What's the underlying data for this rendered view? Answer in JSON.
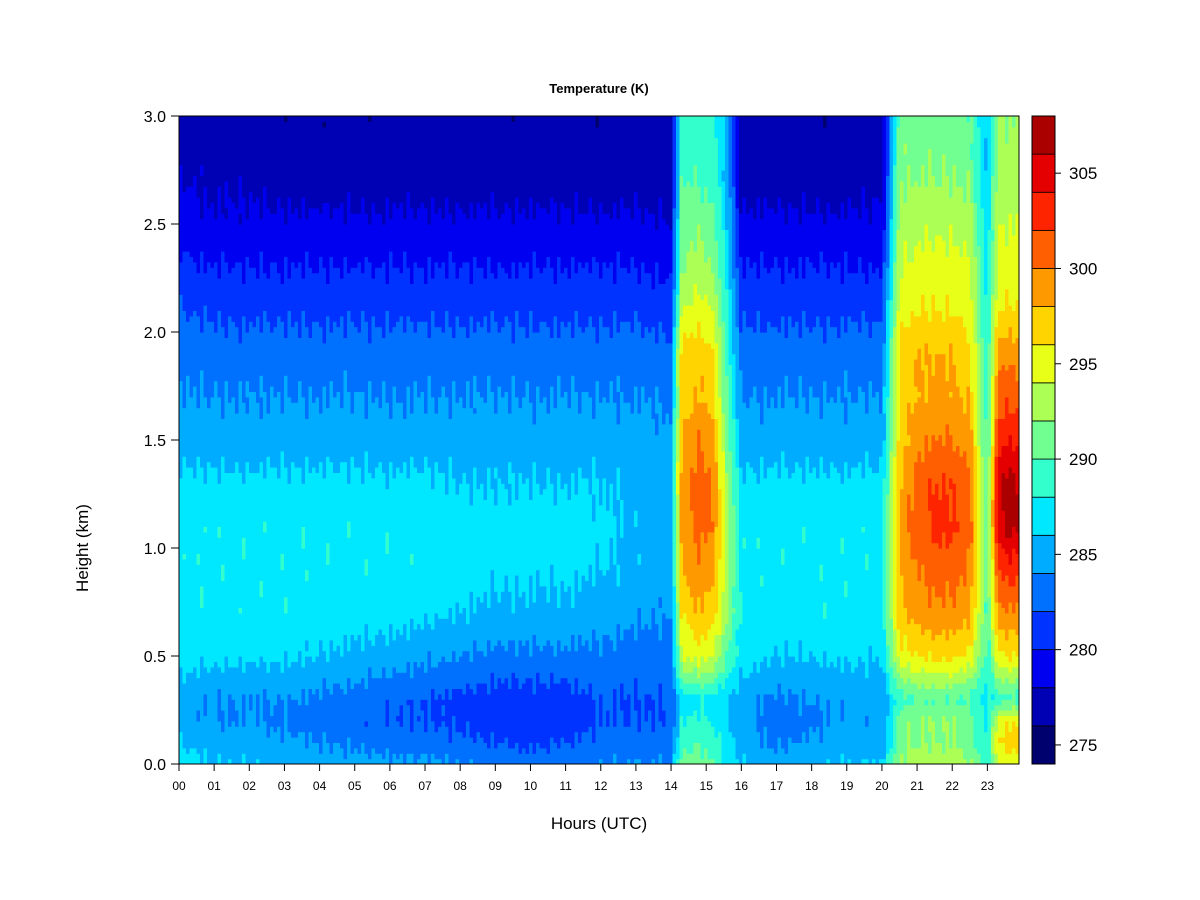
{
  "chart_data": {
    "type": "heatmap",
    "title": "Temperature (K)",
    "xlabel": "Hours (UTC)",
    "ylabel": "Height (km)",
    "x_ticks": [
      "00",
      "01",
      "02",
      "03",
      "04",
      "05",
      "06",
      "07",
      "08",
      "09",
      "10",
      "11",
      "12",
      "13",
      "14",
      "15",
      "16",
      "17",
      "18",
      "19",
      "20",
      "21",
      "22",
      "23"
    ],
    "xlim": [
      0,
      23.9
    ],
    "y_ticks": [
      "0.0",
      "0.5",
      "1.0",
      "1.5",
      "2.0",
      "2.5",
      "3.0"
    ],
    "ylim": [
      0,
      3.0
    ],
    "colorbar": {
      "levels": [
        274,
        276,
        278,
        280,
        282,
        284,
        286,
        288,
        290,
        292,
        294,
        296,
        298,
        300,
        302,
        304,
        306,
        308
      ],
      "colors": [
        "#00006e",
        "#0000b4",
        "#0000f0",
        "#0033ff",
        "#0070ff",
        "#00acff",
        "#00e8ff",
        "#33ffcc",
        "#70ff90",
        "#acff55",
        "#e8ff17",
        "#ffd400",
        "#ff9900",
        "#ff5f00",
        "#ff2400",
        "#e40000",
        "#aa0000",
        "#700000"
      ],
      "tick_labels": [
        "275",
        "280",
        "285",
        "290",
        "295",
        "300",
        "305"
      ],
      "tick_values": [
        275,
        280,
        285,
        290,
        295,
        300,
        305
      ]
    },
    "columns_hours": [
      0,
      1,
      2,
      3,
      4,
      5,
      6,
      7,
      8,
      9,
      10,
      11,
      12,
      13,
      14,
      14.3,
      14.8,
      15.2,
      15.6,
      16,
      17,
      18,
      19,
      20,
      20.5,
      21,
      21.5,
      22,
      22.5,
      23,
      23.3,
      23.6,
      23.9
    ],
    "heights_km": [
      0.0,
      0.1,
      0.2,
      0.3,
      0.5,
      0.7,
      0.9,
      1.1,
      1.3,
      1.5,
      1.7,
      1.9,
      2.1,
      2.3,
      2.5,
      2.7,
      3.0
    ],
    "temperature_K": [
      [
        287,
        286,
        285,
        285,
        287,
        287.5,
        287.5,
        287.5,
        286.5,
        285,
        284,
        283.5,
        282,
        280.5,
        279,
        278,
        277
      ],
      [
        286,
        285,
        284,
        284,
        286.5,
        287.5,
        287.5,
        287.5,
        286.5,
        285,
        284,
        283,
        281.5,
        280,
        278.5,
        277.5,
        276.5
      ],
      [
        286,
        285,
        284,
        284,
        286.5,
        287.5,
        287.5,
        287.5,
        286.5,
        285,
        284,
        283,
        281.5,
        280,
        278.5,
        277.5,
        276.5
      ],
      [
        285.5,
        284.5,
        283.5,
        284,
        286.5,
        287.5,
        287.5,
        287.5,
        286.5,
        285,
        284,
        283,
        281.5,
        280,
        278.5,
        277,
        276.5
      ],
      [
        285,
        284,
        283,
        283.5,
        286,
        287,
        287.5,
        287.5,
        286.5,
        285,
        284,
        283,
        281.5,
        280,
        278.5,
        277,
        276.5
      ],
      [
        285,
        283.5,
        282.5,
        283,
        285.5,
        287,
        287.5,
        287.5,
        286.5,
        285,
        284,
        283,
        281.5,
        280,
        278.5,
        277,
        276.5
      ],
      [
        284.5,
        283,
        282,
        282.5,
        285,
        287,
        287.5,
        287.5,
        286.5,
        285,
        284,
        283,
        281.5,
        280,
        278.5,
        277,
        276.5
      ],
      [
        284.5,
        283,
        282,
        282,
        284.5,
        286.5,
        287.5,
        287.5,
        286.5,
        285,
        284,
        283,
        281.5,
        280,
        278.5,
        277,
        276.5
      ],
      [
        284,
        282.5,
        281.5,
        281.5,
        284,
        286,
        287,
        287,
        286,
        285,
        284,
        283,
        281.5,
        280,
        278.5,
        277,
        276.5
      ],
      [
        283.5,
        282,
        281,
        281,
        283.5,
        285.5,
        286.5,
        287,
        286,
        285,
        284,
        283,
        281.5,
        280,
        278.5,
        277,
        276.5
      ],
      [
        283,
        281.5,
        280.5,
        281,
        283.5,
        285.5,
        286.5,
        287,
        286,
        285,
        284,
        283,
        281.5,
        280,
        278.5,
        277,
        276.5
      ],
      [
        283.5,
        282,
        281,
        281,
        283.5,
        285.5,
        286.5,
        287,
        286,
        285,
        284,
        283,
        281.5,
        280,
        278.5,
        277,
        276.5
      ],
      [
        284,
        282.5,
        282,
        282,
        283.5,
        285,
        286,
        286.5,
        286,
        285,
        284,
        283,
        281.5,
        280,
        278.5,
        277,
        276.5
      ],
      [
        284,
        283,
        282,
        282,
        283,
        284.5,
        285.5,
        285.5,
        285.5,
        285,
        284,
        283,
        281.5,
        280,
        278.5,
        277,
        276.5
      ],
      [
        284,
        283,
        282,
        282,
        283,
        284,
        285,
        285,
        285,
        284.5,
        283.5,
        282.5,
        281,
        279.5,
        278,
        277,
        276.5
      ],
      [
        291,
        289,
        288,
        287,
        294,
        296,
        298,
        299,
        299,
        298,
        297,
        297,
        294,
        292,
        291,
        290,
        289
      ],
      [
        291,
        290,
        288.5,
        287.5,
        295,
        298,
        299.5,
        301,
        301,
        300,
        298,
        297.5,
        295,
        293,
        291.5,
        290,
        289
      ],
      [
        290,
        289,
        288,
        287,
        294,
        297,
        298.5,
        300,
        300,
        299,
        297,
        296,
        294,
        292,
        290.5,
        289,
        288
      ],
      [
        287,
        286.5,
        286,
        286,
        290,
        292,
        293,
        293,
        292,
        291,
        290,
        289,
        288,
        287,
        286,
        285.5,
        285
      ],
      [
        286,
        285,
        284.5,
        285,
        287,
        287.5,
        287.5,
        287.5,
        286.5,
        285,
        284,
        283,
        281.5,
        280,
        278.5,
        277,
        276.5
      ],
      [
        285,
        283.5,
        283,
        283.5,
        286,
        287,
        287.5,
        287.5,
        286.5,
        285,
        284,
        283,
        281.5,
        280,
        278.5,
        277,
        276.5
      ],
      [
        285.5,
        284.5,
        283.5,
        284,
        286,
        287.5,
        287.5,
        287.5,
        286.5,
        285,
        284,
        283,
        281.5,
        280,
        278.5,
        277,
        276.5
      ],
      [
        286,
        285,
        284.5,
        284.5,
        286.5,
        287.5,
        287.5,
        287.5,
        286.5,
        285,
        284,
        283,
        281.5,
        280,
        278.5,
        277,
        276.5
      ],
      [
        286,
        285,
        284.5,
        284.5,
        286,
        287,
        287.5,
        287.5,
        286.5,
        285,
        284,
        283,
        281.5,
        280,
        278.5,
        277.5,
        277
      ],
      [
        292,
        291,
        291,
        289,
        295,
        297.5,
        298,
        298.5,
        298,
        297,
        296.5,
        297,
        295,
        294,
        293,
        292,
        291
      ],
      [
        293,
        292,
        292,
        290,
        296,
        299,
        300,
        301,
        301,
        299.5,
        298,
        298,
        296,
        294.5,
        293.5,
        292,
        291
      ],
      [
        293,
        292,
        292,
        290,
        296.5,
        299.5,
        301,
        302.5,
        302,
        300,
        298.5,
        298,
        296,
        295,
        293.5,
        292,
        291
      ],
      [
        293,
        292,
        292,
        290,
        296.5,
        299.5,
        301,
        302.5,
        302,
        300,
        298.5,
        298,
        296,
        295,
        293.5,
        292,
        291
      ],
      [
        292,
        291,
        291,
        289.5,
        295.5,
        298.5,
        300,
        301,
        300.5,
        299,
        297.5,
        297,
        295,
        294,
        293,
        291.5,
        290.5
      ],
      [
        289,
        288,
        287.5,
        287,
        289,
        289.5,
        290,
        290,
        289.5,
        289,
        288.5,
        288,
        287.5,
        287,
        286.5,
        286,
        285.5
      ],
      [
        294,
        296,
        295,
        289,
        295.5,
        299,
        302,
        305,
        305.5,
        303,
        301,
        299,
        296,
        294.5,
        294,
        293,
        292
      ],
      [
        295,
        297,
        296,
        289.5,
        296,
        300,
        303,
        307,
        307,
        304,
        301.5,
        299.5,
        296.5,
        295,
        294,
        293,
        292
      ],
      [
        294.5,
        296.5,
        295.5,
        289,
        295.5,
        299.5,
        302.5,
        306,
        306,
        303.5,
        301,
        299,
        296,
        294.5,
        294,
        293,
        292
      ]
    ]
  }
}
